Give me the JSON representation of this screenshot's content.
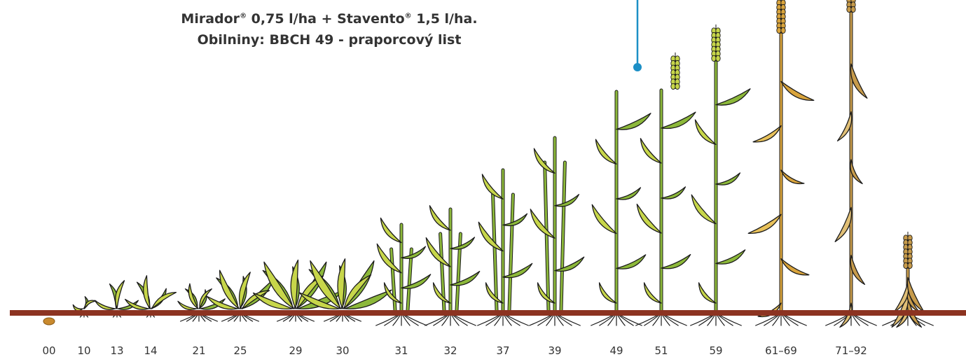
{
  "annotation": {
    "line1": {
      "product_a": "Mirador",
      "mark_a": "®",
      "middle": " 0,75 l/ha + Stavento",
      "mark_b": "®",
      "rest": " 1,5 l/ha."
    },
    "line2": "Obilniny: BBCH 49 - praporcový list",
    "pointer_stage": "49",
    "pointer_color": "#1c8fc6"
  },
  "colors": {
    "soil": "#8c3321",
    "seed": "#c98a2e",
    "leaf_green": "#8cb83a",
    "leaf_light": "#c7d64a",
    "ripe": "#d9a43c",
    "dry": "#c79b4b",
    "outline": "#1b1b1b"
  },
  "stages": [
    {
      "label": "00"
    },
    {
      "label": "10"
    },
    {
      "label": "13"
    },
    {
      "label": "14"
    },
    {
      "label": "21"
    },
    {
      "label": "25"
    },
    {
      "label": "29"
    },
    {
      "label": "30"
    },
    {
      "label": "31"
    },
    {
      "label": "32"
    },
    {
      "label": "37"
    },
    {
      "label": "39"
    },
    {
      "label": "49"
    },
    {
      "label": "51"
    },
    {
      "label": "59"
    },
    {
      "label": "61–69"
    },
    {
      "label": "71–92"
    },
    {
      "label": ""
    }
  ]
}
